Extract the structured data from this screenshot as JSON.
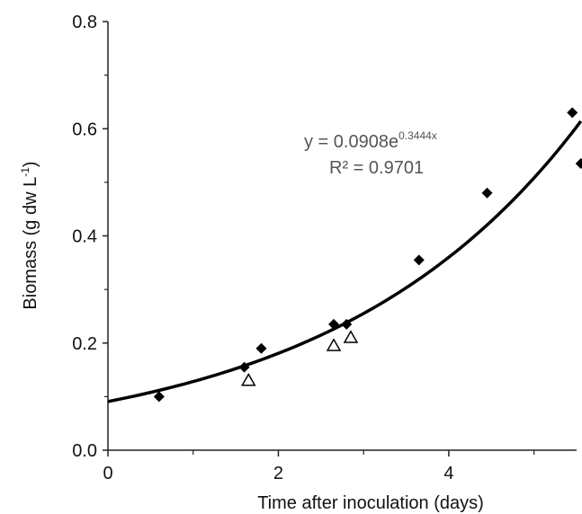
{
  "chart_data": {
    "type": "scatter",
    "title": "",
    "xlabel": "Time after inoculation (days)",
    "ylabel_main": "Biomass  (g dw L",
    "ylabel_sup": "-1",
    "ylabel_tail": ")",
    "xlim": [
      0,
      5.5
    ],
    "ylim": [
      0,
      0.8
    ],
    "x_ticks": [
      0,
      2,
      4
    ],
    "x_tick_labels": [
      "0",
      "2",
      "4"
    ],
    "x_minor_ticks": [
      1,
      3,
      5
    ],
    "y_ticks": [
      0,
      0.2,
      0.4,
      0.6,
      0.8
    ],
    "y_tick_labels": [
      "0.0",
      "0.2",
      "0.4",
      "0.6",
      "0.8"
    ],
    "grid": false,
    "series": [
      {
        "marker": "filled-diamond",
        "color": "#000000",
        "x": [
          0.6,
          1.6,
          1.8,
          2.65,
          2.8,
          3.65,
          4.45,
          5.45,
          5.55
        ],
        "y": [
          0.1,
          0.155,
          0.19,
          0.235,
          0.235,
          0.355,
          0.48,
          0.63,
          0.535
        ]
      },
      {
        "marker": "open-triangle",
        "color": "#000000",
        "x": [
          1.65,
          2.65,
          2.85
        ],
        "y": [
          0.13,
          0.195,
          0.21
        ]
      }
    ],
    "trendline": {
      "type": "exponential",
      "a": 0.0908,
      "b": 0.3444,
      "x_range": [
        0,
        5.55
      ],
      "color": "#000000"
    },
    "annotation": {
      "eq_prefix": "y = 0.0908e",
      "eq_exponent": "0.3444x",
      "r2": "R² = 0.9701"
    }
  }
}
